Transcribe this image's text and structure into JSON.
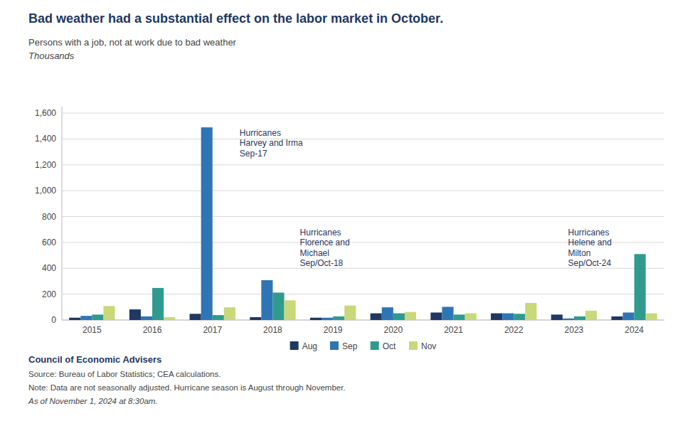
{
  "chart_data": {
    "type": "bar",
    "title": "Bad weather had a substantial effect on the labor market in October.",
    "subtitle": "Persons with a job, not at work due to bad weather",
    "ylabel": "Thousands",
    "categories": [
      "2015",
      "2016",
      "2017",
      "2018",
      "2019",
      "2020",
      "2021",
      "2022",
      "2023",
      "2024"
    ],
    "series": [
      {
        "name": "Aug",
        "color": "#1F3864",
        "values": [
          18,
          82,
          48,
          22,
          18,
          52,
          58,
          52,
          42,
          28
        ]
      },
      {
        "name": "Sep",
        "color": "#2E75B6",
        "values": [
          32,
          28,
          1490,
          308,
          18,
          98,
          102,
          52,
          12,
          58
        ]
      },
      {
        "name": "Oct",
        "color": "#2E9B8E",
        "values": [
          42,
          248,
          38,
          212,
          28,
          52,
          42,
          48,
          28,
          510
        ]
      },
      {
        "name": "Nov",
        "color": "#C8D87A",
        "values": [
          108,
          22,
          98,
          152,
          112,
          62,
          52,
          132,
          72,
          52
        ]
      }
    ],
    "ylim": [
      0,
      1650
    ],
    "yticks": [
      0,
      200,
      400,
      600,
      800,
      {
        "value": 1000,
        "label": "1,000"
      },
      {
        "value": 1200,
        "label": "1,200"
      },
      {
        "value": 1400,
        "label": "1,400"
      },
      {
        "value": 1600,
        "label": "1,600"
      }
    ],
    "grid": true,
    "legend": "bottom",
    "annotations": [
      {
        "text": "Hurricanes\nHarvey and Irma\nSep-17",
        "x": "2017",
        "y": 1490
      },
      {
        "text": "Hurricanes\nFlorence and\nMichael\nSep/Oct-18",
        "x": "2018",
        "y": 720
      },
      {
        "text": "Hurricanes\nHelene and\nMilton\nSep/Oct-24",
        "x": "2024",
        "y": 720
      }
    ],
    "source": "Council of Economic Advisers",
    "notes": [
      "Source: Bureau of Labor Statistics; CEA calculations.",
      "Note: Data are not seasonally adjusted. Hurricane season is August through November.",
      "As of November 1, 2024 at 8:30am."
    ]
  }
}
